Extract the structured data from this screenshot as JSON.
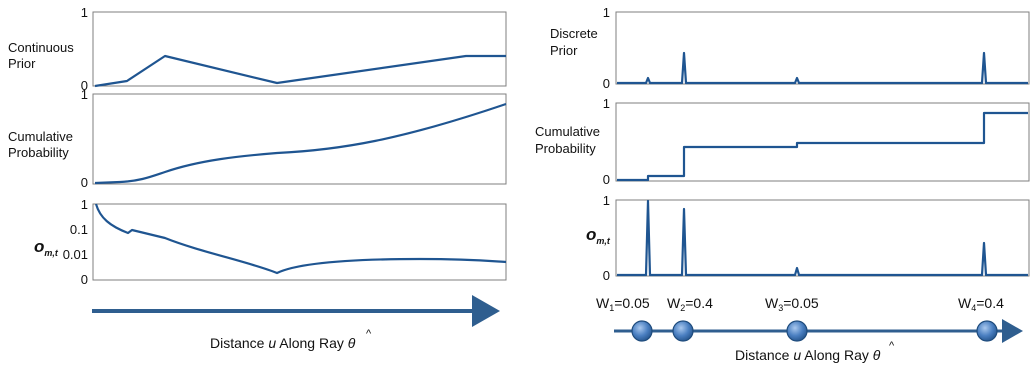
{
  "colors": {
    "curve": "#1f5591",
    "arrow": "#2f5e8f",
    "marker": "#4a7fc1",
    "marker_edge": "#1f4c7d",
    "axis": "#7f7f7f"
  },
  "left": {
    "panels": [
      {
        "label_lines": [
          "Continuous",
          "Prior"
        ],
        "ticks": [
          "1",
          "0"
        ]
      },
      {
        "label_lines": [
          "Cumulative",
          "Probability"
        ],
        "ticks": [
          "1",
          "0"
        ]
      },
      {
        "ylabel": "o",
        "ylabel_sub": "m,t",
        "ticks": [
          "1",
          "0.1",
          "0.01",
          "0"
        ]
      }
    ],
    "axis_caption": {
      "prefix": "Distance ",
      "var": "u",
      "suffix": " Along Ray ",
      "theta": "θ",
      "hat": "^"
    }
  },
  "right": {
    "panels": [
      {
        "label_lines": [
          "Discrete",
          "Prior"
        ],
        "ticks": [
          "1",
          "0"
        ]
      },
      {
        "label_lines": [
          "Cumulative",
          "Probability"
        ],
        "ticks": [
          "1",
          "0"
        ]
      },
      {
        "ylabel": "o",
        "ylabel_sub": "m,t",
        "ticks": [
          "1",
          "0"
        ]
      }
    ],
    "weights": [
      {
        "w": "W",
        "sub": "1",
        "eq": "=0.05"
      },
      {
        "w": "W",
        "sub": "2",
        "eq": "=0.4"
      },
      {
        "w": "W",
        "sub": "3",
        "eq": "=0.05"
      },
      {
        "w": "W",
        "sub": "4",
        "eq": "=0.4"
      }
    ],
    "axis_caption": {
      "prefix": "Distance ",
      "var": "u",
      "suffix": " Along Ray ",
      "theta": "θ",
      "hat": "^"
    }
  }
}
